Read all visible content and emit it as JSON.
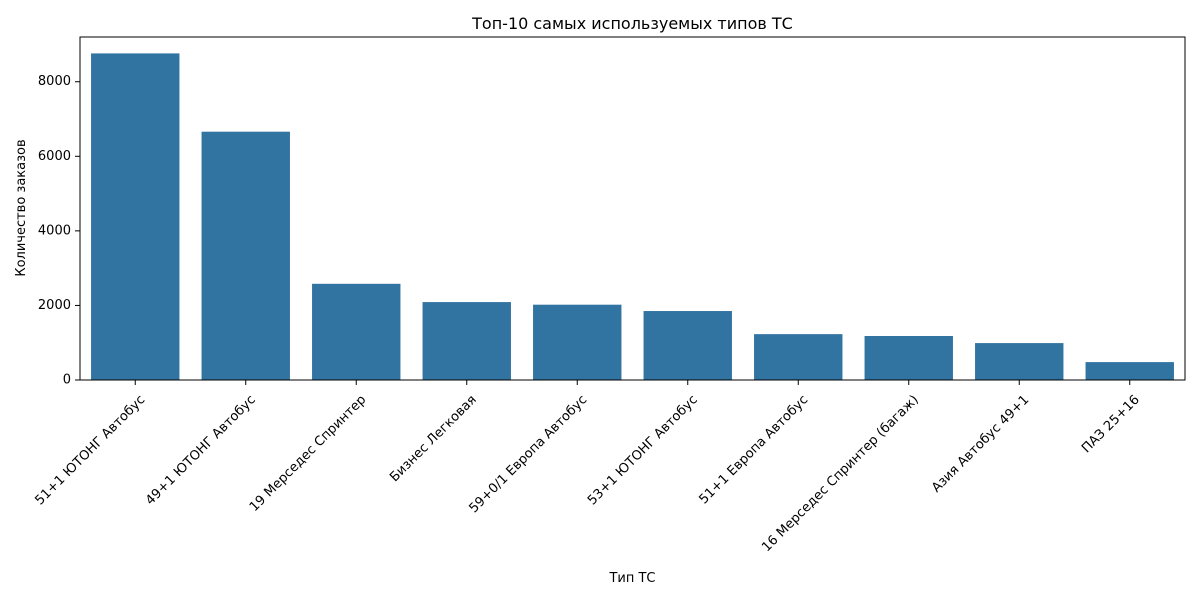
{
  "chart_data": {
    "type": "bar",
    "title": "Топ-10 самых используемых типов ТС",
    "xlabel": "Тип ТС",
    "ylabel": "Количество заказов",
    "categories": [
      "51+1 ЮТОНГ Автобус",
      "49+1 ЮТОНГ Автобус",
      "19 Мерседес Спринтер",
      "Бизнес Легковая",
      "59+0/1 Европа Автобус",
      "53+1 ЮТОНГ Автобус",
      "51+1 Европа Автобус",
      "16 Мерседес Спринтер (багаж)",
      "Азия Автобус 49+1",
      "ПАЗ 25+16"
    ],
    "values": [
      8760,
      6660,
      2580,
      2090,
      2020,
      1850,
      1230,
      1180,
      990,
      480
    ],
    "ylim": [
      0,
      9200
    ],
    "yticks": [
      0,
      2000,
      4000,
      6000,
      8000
    ],
    "grid": false,
    "bar_color": "#3274a1"
  }
}
